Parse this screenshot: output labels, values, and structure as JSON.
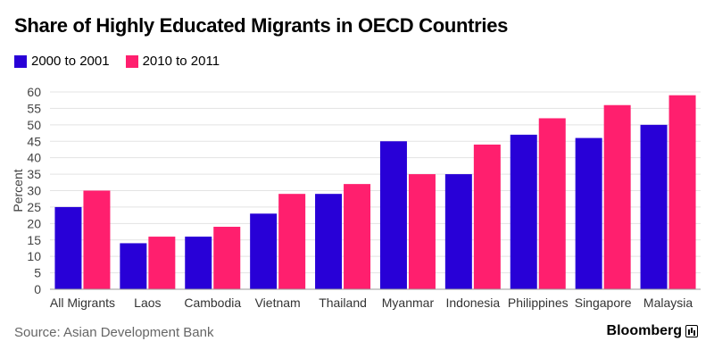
{
  "chart_data": {
    "type": "bar",
    "title": "Share of Highly Educated Migrants in OECD Countries",
    "ylabel": "Percent",
    "xlabel": "",
    "ylim": [
      0,
      60
    ],
    "yticks": [
      0,
      5,
      10,
      15,
      20,
      25,
      30,
      35,
      40,
      45,
      50,
      55,
      60
    ],
    "grid": true,
    "legend_position": "top-left",
    "categories": [
      "All Migrants",
      "Laos",
      "Cambodia",
      "Vietnam",
      "Thailand",
      "Myanmar",
      "Indonesia",
      "Philippines",
      "Singapore",
      "Malaysia"
    ],
    "series": [
      {
        "name": "2000 to 2001",
        "color": "#2800d7",
        "values": [
          25,
          14,
          16,
          23,
          29,
          45,
          35,
          47,
          46,
          50
        ]
      },
      {
        "name": "2010 to 2011",
        "color": "#ff1f6e",
        "values": [
          30,
          16,
          19,
          29,
          32,
          35,
          44,
          52,
          56,
          59
        ]
      }
    ]
  },
  "footer": {
    "source": "Source: Asian Development Bank",
    "brand": "Bloomberg",
    "brand_icon": "bar-chart-icon"
  }
}
